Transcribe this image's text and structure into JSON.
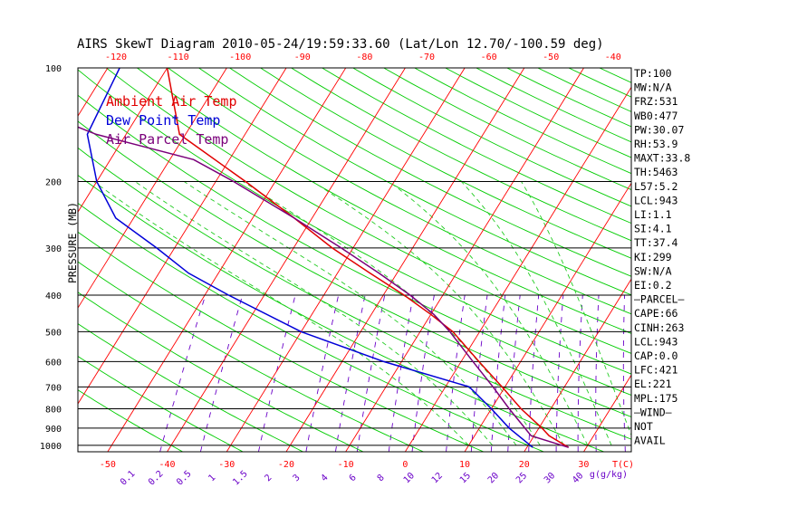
{
  "title": "AIRS SkewT Diagram 2010-05-24/19:59:33.60 (Lat/Lon 12.70/-100.59 deg)",
  "colors": {
    "ambient": "#e00000",
    "dewpoint": "#0000d8",
    "parcel": "#7a007a",
    "isotherm": "#ff0000",
    "dry_adiabat": "#00cc00",
    "moist_adiabat": "#22cc22",
    "mixing_ratio": "#6a00c8",
    "frame": "#000000"
  },
  "chart_data": {
    "type": "skewt",
    "title": "AIRS SkewT Diagram 2010-05-24/19:59:33.60 (Lat/Lon 12.70/-100.59 deg)",
    "ylabel": "PRESSURE (MB)",
    "xlabel_bottom_unit": "T(C)",
    "xlabel_mixing_unit": "g(g/kg)",
    "pressure_range": [
      1040,
      100
    ],
    "temperature_range_bottom": [
      -55,
      38
    ],
    "pressure_ticks": [
      {
        "value": 100,
        "label": "100"
      },
      {
        "value": 200,
        "label": "200"
      },
      {
        "value": 300,
        "label": "300"
      },
      {
        "value": 400,
        "label": "400"
      },
      {
        "value": 500,
        "label": "500"
      },
      {
        "value": 600,
        "label": "600"
      },
      {
        "value": 700,
        "label": "700"
      },
      {
        "value": 800,
        "label": "800"
      },
      {
        "value": 900,
        "label": "900"
      },
      {
        "value": 1000,
        "label": "1000"
      }
    ],
    "temperature_ticks_bottom": [
      {
        "value": -50,
        "label": "-50"
      },
      {
        "value": -40,
        "label": "-40"
      },
      {
        "value": -30,
        "label": "-30"
      },
      {
        "value": -20,
        "label": "-20"
      },
      {
        "value": -10,
        "label": "-10"
      },
      {
        "value": 0,
        "label": "0"
      },
      {
        "value": 10,
        "label": "10"
      },
      {
        "value": 20,
        "label": "20"
      },
      {
        "value": 30,
        "label": "30"
      }
    ],
    "temperature_ticks_top": [
      {
        "value": -120,
        "label": "-120"
      },
      {
        "value": -110,
        "label": "-110"
      },
      {
        "value": -100,
        "label": "-100"
      },
      {
        "value": -90,
        "label": "-90"
      },
      {
        "value": -80,
        "label": "-80"
      },
      {
        "value": -70,
        "label": "-70"
      },
      {
        "value": -60,
        "label": "-60"
      },
      {
        "value": -50,
        "label": "-50"
      },
      {
        "value": -40,
        "label": "-40"
      }
    ],
    "mixing_ratio_labels": [
      {
        "value": 0.1,
        "label": "0.1"
      },
      {
        "value": 0.2,
        "label": "0.2"
      },
      {
        "value": 0.5,
        "label": "0.5"
      },
      {
        "value": 1,
        "label": "1"
      },
      {
        "value": 1.5,
        "label": "1.5"
      },
      {
        "value": 2,
        "label": "2"
      },
      {
        "value": 3,
        "label": "3"
      },
      {
        "value": 4,
        "label": "4"
      },
      {
        "value": 6,
        "label": "6"
      },
      {
        "value": 8,
        "label": "8"
      },
      {
        "value": 10,
        "label": "10"
      },
      {
        "value": 12,
        "label": "12"
      },
      {
        "value": 15,
        "label": "15"
      },
      {
        "value": 20,
        "label": "20"
      },
      {
        "value": 25,
        "label": "25"
      },
      {
        "value": 30,
        "label": "30"
      },
      {
        "value": 40,
        "label": "40"
      }
    ],
    "legend": [
      {
        "key": "ambient",
        "label": "Ambient Air Temp"
      },
      {
        "key": "dewpoint",
        "label": "Dew Point Temp"
      },
      {
        "key": "parcel",
        "label": "Air Parcel Temp"
      }
    ],
    "legend_position": "top-left",
    "series": [
      {
        "key": "ambient",
        "points": [
          {
            "p": 100,
            "t": -80.0
          },
          {
            "p": 150,
            "t": -71.0
          },
          {
            "p": 200,
            "t": -55.0
          },
          {
            "p": 250,
            "t": -43.0
          },
          {
            "p": 300,
            "t": -33.5
          },
          {
            "p": 350,
            "t": -24.5
          },
          {
            "p": 400,
            "t": -16.5
          },
          {
            "p": 450,
            "t": -10.0
          },
          {
            "p": 500,
            "t": -4.5
          },
          {
            "p": 600,
            "t": 3.0
          },
          {
            "p": 700,
            "t": 9.5
          },
          {
            "p": 800,
            "t": 15.0
          },
          {
            "p": 900,
            "t": 20.5
          },
          {
            "p": 943,
            "t": 22.5
          },
          {
            "p": 1013,
            "t": 27.0
          }
        ]
      },
      {
        "key": "dewpoint",
        "points": [
          {
            "p": 100,
            "t": -88.0
          },
          {
            "p": 150,
            "t": -86.5
          },
          {
            "p": 200,
            "t": -80.0
          },
          {
            "p": 250,
            "t": -73.0
          },
          {
            "p": 300,
            "t": -63.0
          },
          {
            "p": 350,
            "t": -55.0
          },
          {
            "p": 400,
            "t": -46.0
          },
          {
            "p": 500,
            "t": -30.0
          },
          {
            "p": 600,
            "t": -13.0
          },
          {
            "p": 700,
            "t": 4.0
          },
          {
            "p": 800,
            "t": 10.0
          },
          {
            "p": 900,
            "t": 15.0
          },
          {
            "p": 1013,
            "t": 21.0
          }
        ]
      },
      {
        "key": "parcel",
        "points": [
          {
            "p": 100,
            "t": -120.0
          },
          {
            "p": 150,
            "t": -85.0
          },
          {
            "p": 175,
            "t": -66.0
          },
          {
            "p": 200,
            "t": -57.0
          },
          {
            "p": 250,
            "t": -43.0
          },
          {
            "p": 300,
            "t": -32.0
          },
          {
            "p": 350,
            "t": -23.0
          },
          {
            "p": 400,
            "t": -15.5
          },
          {
            "p": 450,
            "t": -9.5
          },
          {
            "p": 500,
            "t": -5.0
          },
          {
            "p": 600,
            "t": 2.0
          },
          {
            "p": 700,
            "t": 8.0
          },
          {
            "p": 800,
            "t": 13.0
          },
          {
            "p": 943,
            "t": 19.5
          },
          {
            "p": 1013,
            "t": 27.0
          }
        ]
      }
    ],
    "indices": [
      "TP:100",
      "MW:N/A",
      "FRZ:531",
      "WB0:477",
      "PW:30.07",
      "RH:53.9",
      "MAXT:33.8",
      "TH:5463",
      "L57:5.2",
      "LCL:943",
      "LI:1.1",
      "SI:4.1",
      "TT:37.4",
      "KI:299",
      "SW:N/A",
      "EI:0.2",
      "—PARCEL—",
      "CAPE:66",
      "CINH:263",
      "LCL:943",
      "CAP:0.0",
      "LFC:421",
      "EL:221",
      "MPL:175",
      "—WIND—",
      "NOT",
      "AVAIL"
    ]
  }
}
